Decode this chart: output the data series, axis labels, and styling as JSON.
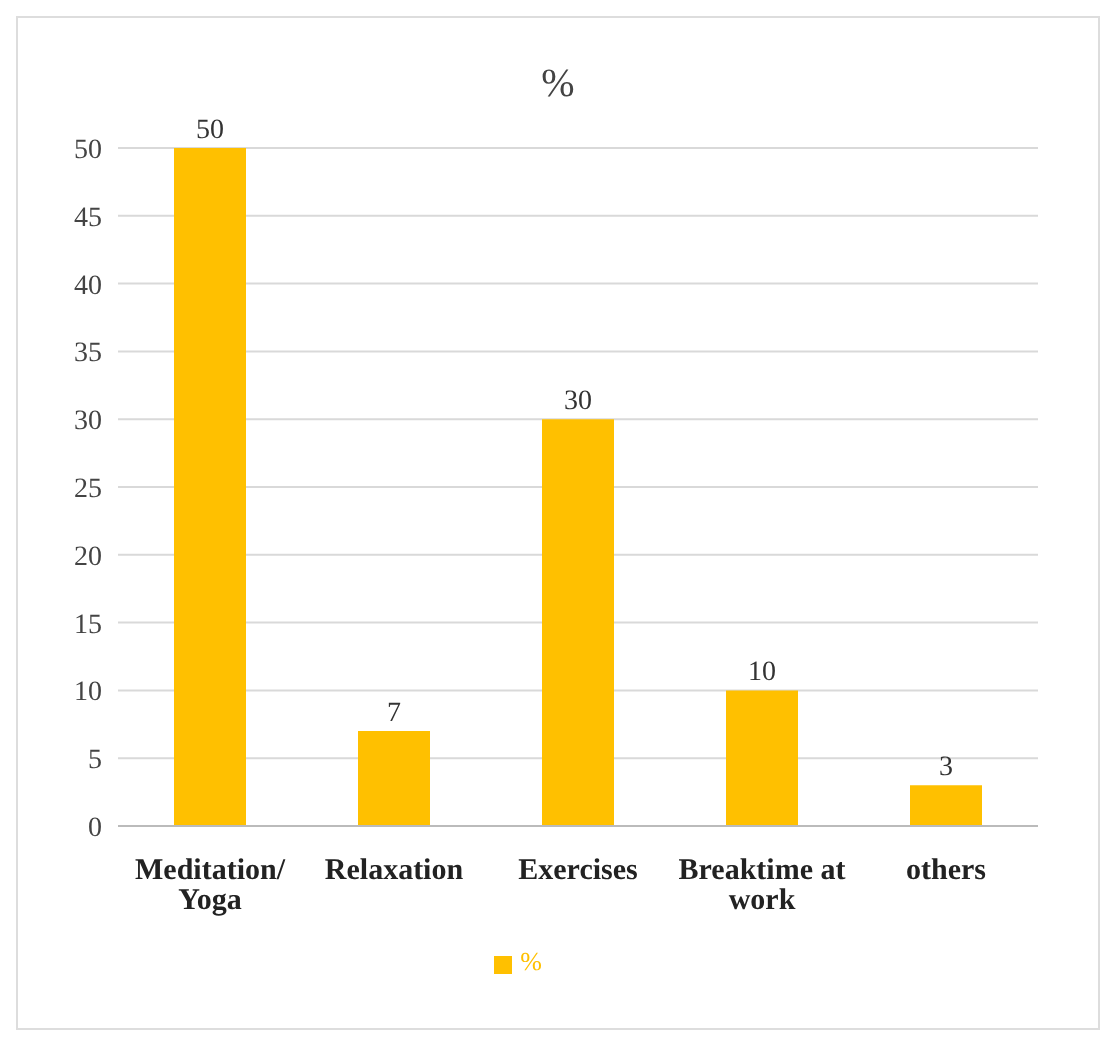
{
  "chart_data": {
    "type": "bar",
    "title": "%",
    "categories": [
      "Meditation/ Yoga",
      "Relaxation",
      "Exercises",
      "Breaktime at work",
      "others"
    ],
    "series": [
      {
        "name": "%",
        "color": "#ffc000",
        "values": [
          50,
          7,
          30,
          10,
          3
        ]
      }
    ],
    "ylim": [
      0,
      50
    ],
    "yticks": [
      0,
      5,
      10,
      15,
      20,
      25,
      30,
      35,
      40,
      45,
      50
    ],
    "grid": "y",
    "legend": "bottom",
    "data_labels": true
  }
}
